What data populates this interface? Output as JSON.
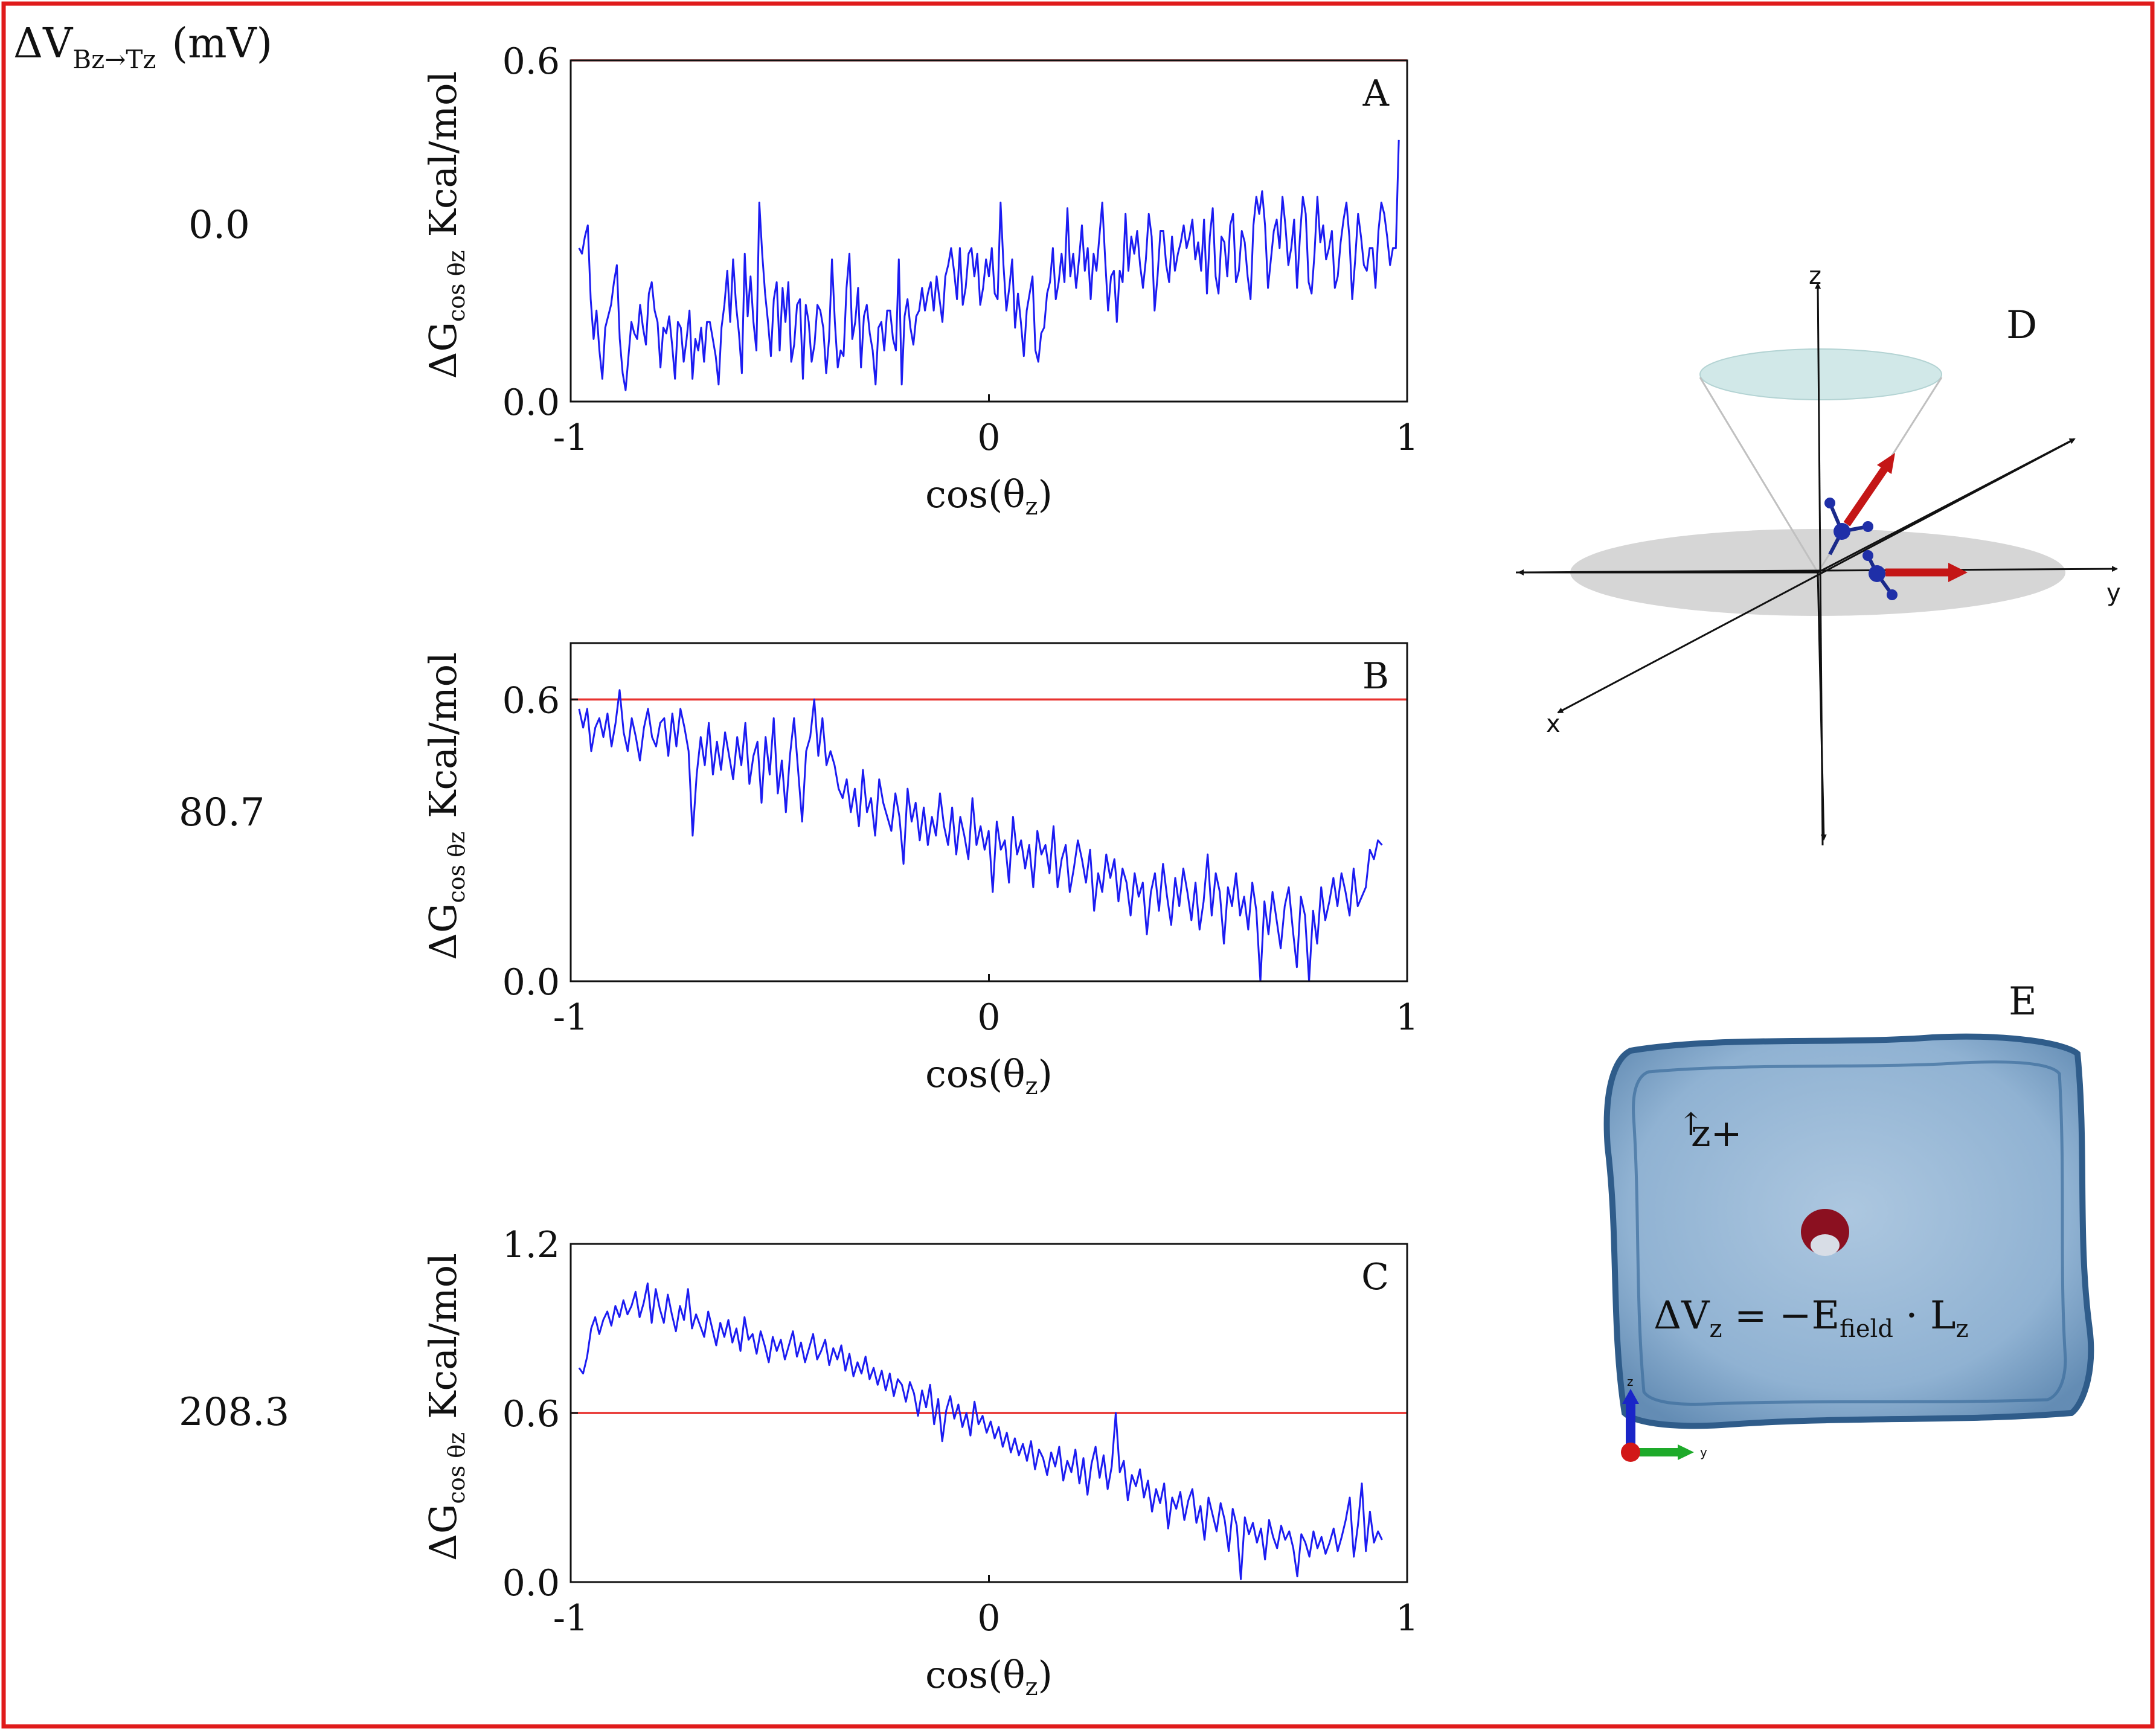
{
  "figure": {
    "header_label": "ΔV",
    "header_subscript": "Bz→Tz",
    "header_unit": "(mV)",
    "border_color": "#e01b1b",
    "line_color": "#1c1cf2",
    "threshold_color": "#e8322f"
  },
  "rows": [
    {
      "voltage": "0.0"
    },
    {
      "voltage": "80.7"
    },
    {
      "voltage": "208.3"
    }
  ],
  "chart_data": [
    {
      "type": "line",
      "panel_label": "A",
      "ylabel_main": "ΔG",
      "ylabel_sub": "cos θz",
      "ylabel_unit": "Kcal/mol",
      "xlabel_main": "cos(θ",
      "xlabel_sub": "z",
      "xlabel_close": ")",
      "xlim": [
        -1,
        1
      ],
      "ylim": [
        0,
        0.6
      ],
      "xticks": [
        "-1",
        "0",
        "1"
      ],
      "yticks": [
        {
          "value": 0.0,
          "label": "0.0"
        },
        {
          "value": 0.6,
          "label": "0.6"
        }
      ],
      "threshold": 0.6,
      "series": [
        {
          "x_start": -0.98,
          "x_end": 0.98,
          "values": [
            0.27,
            0.26,
            0.29,
            0.31,
            0.18,
            0.11,
            0.16,
            0.09,
            0.04,
            0.13,
            0.15,
            0.17,
            0.21,
            0.24,
            0.11,
            0.05,
            0.02,
            0.08,
            0.14,
            0.12,
            0.11,
            0.17,
            0.13,
            0.1,
            0.19,
            0.21,
            0.16,
            0.14,
            0.06,
            0.13,
            0.12,
            0.15,
            0.1,
            0.04,
            0.14,
            0.13,
            0.07,
            0.11,
            0.16,
            0.04,
            0.11,
            0.09,
            0.13,
            0.07,
            0.14,
            0.14,
            0.11,
            0.08,
            0.03,
            0.13,
            0.17,
            0.23,
            0.14,
            0.25,
            0.17,
            0.12,
            0.05,
            0.26,
            0.15,
            0.22,
            0.14,
            0.09,
            0.35,
            0.26,
            0.19,
            0.14,
            0.08,
            0.18,
            0.21,
            0.09,
            0.2,
            0.14,
            0.21,
            0.07,
            0.1,
            0.17,
            0.18,
            0.04,
            0.17,
            0.14,
            0.07,
            0.1,
            0.17,
            0.16,
            0.13,
            0.05,
            0.11,
            0.25,
            0.14,
            0.06,
            0.09,
            0.08,
            0.2,
            0.26,
            0.11,
            0.14,
            0.2,
            0.06,
            0.15,
            0.17,
            0.12,
            0.09,
            0.03,
            0.13,
            0.14,
            0.09,
            0.16,
            0.16,
            0.11,
            0.09,
            0.25,
            0.03,
            0.15,
            0.18,
            0.13,
            0.1,
            0.15,
            0.16,
            0.2,
            0.16,
            0.19,
            0.21,
            0.16,
            0.22,
            0.18,
            0.14,
            0.22,
            0.24,
            0.27,
            0.23,
            0.18,
            0.27,
            0.17,
            0.2,
            0.26,
            0.27,
            0.22,
            0.26,
            0.17,
            0.2,
            0.25,
            0.22,
            0.27,
            0.19,
            0.18,
            0.35,
            0.24,
            0.16,
            0.2,
            0.25,
            0.13,
            0.19,
            0.14,
            0.08,
            0.16,
            0.19,
            0.22,
            0.09,
            0.07,
            0.12,
            0.13,
            0.19,
            0.21,
            0.27,
            0.18,
            0.21,
            0.26,
            0.21,
            0.34,
            0.22,
            0.26,
            0.2,
            0.25,
            0.31,
            0.23,
            0.27,
            0.18,
            0.26,
            0.23,
            0.29,
            0.35,
            0.25,
            0.16,
            0.22,
            0.23,
            0.14,
            0.23,
            0.21,
            0.33,
            0.23,
            0.29,
            0.26,
            0.3,
            0.24,
            0.2,
            0.25,
            0.33,
            0.29,
            0.16,
            0.22,
            0.3,
            0.3,
            0.24,
            0.21,
            0.29,
            0.23,
            0.26,
            0.28,
            0.31,
            0.27,
            0.29,
            0.32,
            0.25,
            0.28,
            0.23,
            0.32,
            0.19,
            0.29,
            0.34,
            0.22,
            0.19,
            0.29,
            0.28,
            0.22,
            0.31,
            0.33,
            0.21,
            0.23,
            0.3,
            0.28,
            0.22,
            0.18,
            0.31,
            0.36,
            0.33,
            0.37,
            0.31,
            0.2,
            0.25,
            0.3,
            0.32,
            0.27,
            0.36,
            0.31,
            0.24,
            0.27,
            0.32,
            0.2,
            0.29,
            0.36,
            0.33,
            0.21,
            0.19,
            0.26,
            0.36,
            0.28,
            0.31,
            0.25,
            0.27,
            0.3,
            0.2,
            0.22,
            0.28,
            0.32,
            0.35,
            0.29,
            0.18,
            0.25,
            0.33,
            0.29,
            0.24,
            0.23,
            0.27,
            0.27,
            0.2,
            0.3,
            0.35,
            0.33,
            0.29,
            0.24,
            0.27,
            0.27,
            0.46
          ]
        }
      ]
    },
    {
      "type": "line",
      "panel_label": "B",
      "ylabel_main": "ΔG",
      "ylabel_sub": "cos θz",
      "ylabel_unit": "Kcal/mol",
      "xlabel_main": "cos(θ",
      "xlabel_sub": "z",
      "xlabel_close": ")",
      "xlim": [
        -1,
        1
      ],
      "ylim": [
        0,
        0.72
      ],
      "xticks": [
        "-1",
        "0",
        "1"
      ],
      "yticks": [
        {
          "value": 0.0,
          "label": "0.0"
        },
        {
          "value": 0.6,
          "label": "0.6"
        }
      ],
      "threshold": 0.6,
      "series": [
        {
          "x_start": -0.98,
          "x_end": 0.94,
          "values": [
            0.58,
            0.54,
            0.58,
            0.49,
            0.54,
            0.56,
            0.52,
            0.57,
            0.5,
            0.55,
            0.62,
            0.53,
            0.49,
            0.56,
            0.52,
            0.47,
            0.54,
            0.58,
            0.52,
            0.5,
            0.55,
            0.56,
            0.48,
            0.57,
            0.5,
            0.58,
            0.54,
            0.49,
            0.31,
            0.44,
            0.52,
            0.46,
            0.55,
            0.44,
            0.51,
            0.45,
            0.53,
            0.48,
            0.43,
            0.52,
            0.46,
            0.55,
            0.42,
            0.48,
            0.51,
            0.38,
            0.52,
            0.44,
            0.56,
            0.4,
            0.47,
            0.36,
            0.48,
            0.56,
            0.45,
            0.34,
            0.49,
            0.52,
            0.6,
            0.48,
            0.56,
            0.46,
            0.49,
            0.46,
            0.41,
            0.39,
            0.43,
            0.36,
            0.41,
            0.33,
            0.45,
            0.36,
            0.39,
            0.31,
            0.43,
            0.38,
            0.35,
            0.32,
            0.4,
            0.35,
            0.25,
            0.41,
            0.34,
            0.38,
            0.3,
            0.37,
            0.29,
            0.35,
            0.31,
            0.4,
            0.33,
            0.29,
            0.37,
            0.27,
            0.35,
            0.31,
            0.26,
            0.39,
            0.29,
            0.33,
            0.28,
            0.32,
            0.19,
            0.34,
            0.28,
            0.3,
            0.21,
            0.35,
            0.27,
            0.3,
            0.24,
            0.29,
            0.2,
            0.32,
            0.27,
            0.29,
            0.23,
            0.33,
            0.2,
            0.26,
            0.29,
            0.19,
            0.24,
            0.3,
            0.26,
            0.21,
            0.28,
            0.15,
            0.23,
            0.19,
            0.27,
            0.22,
            0.26,
            0.17,
            0.24,
            0.21,
            0.14,
            0.23,
            0.18,
            0.21,
            0.1,
            0.19,
            0.23,
            0.15,
            0.25,
            0.18,
            0.12,
            0.22,
            0.16,
            0.24,
            0.19,
            0.13,
            0.21,
            0.11,
            0.17,
            0.27,
            0.14,
            0.23,
            0.19,
            0.08,
            0.2,
            0.16,
            0.23,
            0.14,
            0.18,
            0.11,
            0.21,
            0.15,
            0.0,
            0.17,
            0.1,
            0.19,
            0.13,
            0.07,
            0.16,
            0.2,
            0.11,
            0.03,
            0.18,
            0.14,
            0.0,
            0.15,
            0.08,
            0.2,
            0.13,
            0.17,
            0.22,
            0.16,
            0.23,
            0.19,
            0.14,
            0.24,
            0.16,
            0.18,
            0.2,
            0.28,
            0.26,
            0.3,
            0.29
          ]
        }
      ]
    },
    {
      "type": "line",
      "panel_label": "C",
      "ylabel_main": "ΔG",
      "ylabel_sub": "cos θz",
      "ylabel_unit": "Kcal/mol",
      "xlabel_main": "cos(θ",
      "xlabel_sub": "z",
      "xlabel_close": ")",
      "xlim": [
        -1,
        1
      ],
      "ylim": [
        0,
        1.2
      ],
      "xticks": [
        "-1",
        "0",
        "1"
      ],
      "yticks": [
        {
          "value": 0.0,
          "label": "0.0"
        },
        {
          "value": 0.6,
          "label": "0.6"
        },
        {
          "value": 1.2,
          "label": "1.2"
        }
      ],
      "threshold": 0.6,
      "series": [
        {
          "x_start": -0.98,
          "x_end": 0.94,
          "values": [
            0.76,
            0.74,
            0.8,
            0.9,
            0.94,
            0.88,
            0.93,
            0.96,
            0.91,
            0.98,
            0.94,
            1.0,
            0.95,
            0.98,
            1.03,
            0.94,
            0.99,
            1.06,
            0.92,
            1.04,
            0.97,
            0.92,
            1.02,
            0.95,
            0.89,
            0.98,
            0.93,
            1.04,
            0.9,
            0.95,
            0.91,
            0.87,
            0.96,
            0.9,
            0.84,
            0.92,
            0.87,
            0.93,
            0.85,
            0.9,
            0.82,
            0.94,
            0.86,
            0.88,
            0.81,
            0.89,
            0.84,
            0.78,
            0.87,
            0.82,
            0.86,
            0.79,
            0.84,
            0.89,
            0.8,
            0.85,
            0.78,
            0.83,
            0.88,
            0.79,
            0.82,
            0.86,
            0.77,
            0.83,
            0.79,
            0.84,
            0.75,
            0.81,
            0.73,
            0.78,
            0.74,
            0.8,
            0.72,
            0.76,
            0.7,
            0.75,
            0.68,
            0.74,
            0.66,
            0.72,
            0.7,
            0.64,
            0.71,
            0.67,
            0.59,
            0.68,
            0.62,
            0.7,
            0.56,
            0.65,
            0.5,
            0.61,
            0.66,
            0.58,
            0.63,
            0.55,
            0.6,
            0.52,
            0.64,
            0.56,
            0.59,
            0.53,
            0.57,
            0.51,
            0.55,
            0.48,
            0.53,
            0.46,
            0.51,
            0.45,
            0.49,
            0.43,
            0.5,
            0.4,
            0.47,
            0.44,
            0.38,
            0.46,
            0.41,
            0.48,
            0.36,
            0.43,
            0.39,
            0.47,
            0.35,
            0.44,
            0.31,
            0.42,
            0.48,
            0.37,
            0.45,
            0.33,
            0.41,
            0.6,
            0.39,
            0.43,
            0.29,
            0.38,
            0.34,
            0.4,
            0.3,
            0.36,
            0.25,
            0.33,
            0.28,
            0.35,
            0.19,
            0.3,
            0.26,
            0.32,
            0.22,
            0.29,
            0.33,
            0.21,
            0.27,
            0.15,
            0.3,
            0.24,
            0.18,
            0.28,
            0.22,
            0.11,
            0.26,
            0.2,
            0.01,
            0.23,
            0.17,
            0.21,
            0.14,
            0.19,
            0.08,
            0.22,
            0.16,
            0.12,
            0.2,
            0.15,
            0.18,
            0.12,
            0.02,
            0.17,
            0.14,
            0.09,
            0.18,
            0.12,
            0.16,
            0.1,
            0.14,
            0.19,
            0.11,
            0.16,
            0.22,
            0.3,
            0.09,
            0.2,
            0.35,
            0.11,
            0.25,
            0.14,
            0.18,
            0.15
          ]
        }
      ]
    }
  ],
  "panel_d": {
    "label": "D",
    "axis_x": "x",
    "axis_y": "y",
    "axis_z": "z"
  },
  "panel_e": {
    "label": "E",
    "arrow_glyph": "↑",
    "z_label": "z+",
    "eq_lhs": "ΔV",
    "eq_lhs_sub": "z",
    "eq_mid": " = −E",
    "eq_mid_sub": "field",
    "eq_dot": " · L",
    "eq_rhs_sub": "z",
    "triad_z": "z",
    "triad_y": "y"
  }
}
